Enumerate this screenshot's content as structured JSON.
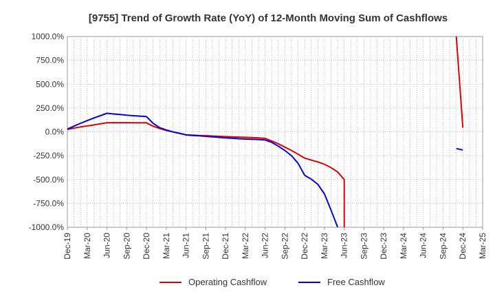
{
  "chart_data": {
    "type": "line",
    "title": "[9755]  Trend of Growth Rate (YoY) of 12-Month Moving Sum of Cashflows",
    "xlabel": "",
    "ylabel": "",
    "ylim": [
      -1000,
      1000
    ],
    "y_ticks": [
      1000,
      750,
      500,
      250,
      0,
      -250,
      -500,
      -750,
      -1000
    ],
    "y_tick_labels": [
      "1000.0%",
      "750.0%",
      "500.0%",
      "250.0%",
      "0.0%",
      "-250.0%",
      "-500.0%",
      "-750.0%",
      "-1000.0%"
    ],
    "x_tick_labels": [
      "Dec-19",
      "Mar-20",
      "Jun-20",
      "Sep-20",
      "Dec-20",
      "Mar-21",
      "Jun-21",
      "Sep-21",
      "Dec-21",
      "Mar-22",
      "Jun-22",
      "Sep-22",
      "Dec-22",
      "Mar-23",
      "Jun-23",
      "Sep-23",
      "Dec-23",
      "Mar-24",
      "Jun-24",
      "Sep-24",
      "Dec-24",
      "Mar-25"
    ],
    "grid": true,
    "legend_position": "bottom",
    "series": [
      {
        "name": "Operating Cashflow",
        "color": "#dd0000",
        "segments": [
          [
            [
              "Dec-19",
              25
            ],
            [
              "Jan-20",
              40
            ],
            [
              "Feb-20",
              52
            ],
            [
              "Mar-20",
              62
            ],
            [
              "Apr-20",
              72
            ],
            [
              "May-20",
              85
            ],
            [
              "Jun-20",
              95
            ],
            [
              "Jul-20",
              97
            ],
            [
              "Aug-20",
              97
            ],
            [
              "Sep-20",
              97
            ],
            [
              "Oct-20",
              96
            ],
            [
              "Nov-20",
              96
            ],
            [
              "Dec-20",
              95
            ],
            [
              "Jan-21",
              60
            ],
            [
              "Feb-21",
              35
            ],
            [
              "Mar-21",
              15
            ],
            [
              "Apr-21",
              0
            ],
            [
              "May-21",
              -15
            ],
            [
              "Jun-21",
              -30
            ],
            [
              "Jul-21",
              -35
            ],
            [
              "Aug-21",
              -38
            ],
            [
              "Sep-21",
              -40
            ],
            [
              "Oct-21",
              -43
            ],
            [
              "Nov-21",
              -46
            ],
            [
              "Dec-21",
              -50
            ],
            [
              "Jan-22",
              -52
            ],
            [
              "Feb-22",
              -55
            ],
            [
              "Mar-22",
              -57
            ],
            [
              "Apr-22",
              -60
            ],
            [
              "May-22",
              -63
            ],
            [
              "Jun-22",
              -68
            ],
            [
              "Jul-22",
              -95
            ],
            [
              "Aug-22",
              -125
            ],
            [
              "Sep-22",
              -160
            ],
            [
              "Oct-22",
              -195
            ],
            [
              "Nov-22",
              -235
            ],
            [
              "Dec-22",
              -275
            ],
            [
              "Jan-23",
              -295
            ],
            [
              "Feb-23",
              -315
            ],
            [
              "Mar-23",
              -340
            ],
            [
              "Apr-23",
              -375
            ],
            [
              "May-23",
              -420
            ],
            [
              "Jun-23",
              -500
            ],
            [
              "Jun-23",
              -1000
            ]
          ],
          [
            [
              "Nov-24",
              1000
            ],
            [
              "Dec-24",
              45
            ]
          ]
        ]
      },
      {
        "name": "Free Cashflow",
        "color": "#0000dd",
        "segments": [
          [
            [
              "Dec-19",
              30
            ],
            [
              "Jan-20",
              60
            ],
            [
              "Feb-20",
              90
            ],
            [
              "Mar-20",
              118
            ],
            [
              "Apr-20",
              145
            ],
            [
              "May-20",
              170
            ],
            [
              "Jun-20",
              195
            ],
            [
              "Jul-20",
              188
            ],
            [
              "Aug-20",
              182
            ],
            [
              "Sep-20",
              175
            ],
            [
              "Oct-20",
              170
            ],
            [
              "Nov-20",
              165
            ],
            [
              "Dec-20",
              160
            ],
            [
              "Jan-21",
              90
            ],
            [
              "Feb-21",
              45
            ],
            [
              "Mar-21",
              20
            ],
            [
              "Apr-21",
              0
            ],
            [
              "May-21",
              -15
            ],
            [
              "Jun-21",
              -32
            ],
            [
              "Jul-21",
              -38
            ],
            [
              "Aug-21",
              -42
            ],
            [
              "Sep-21",
              -47
            ],
            [
              "Oct-21",
              -52
            ],
            [
              "Nov-21",
              -58
            ],
            [
              "Dec-21",
              -63
            ],
            [
              "Jan-22",
              -67
            ],
            [
              "Feb-22",
              -72
            ],
            [
              "Mar-22",
              -75
            ],
            [
              "Apr-22",
              -78
            ],
            [
              "May-22",
              -80
            ],
            [
              "Jun-22",
              -85
            ],
            [
              "Jul-22",
              -110
            ],
            [
              "Aug-22",
              -150
            ],
            [
              "Sep-22",
              -195
            ],
            [
              "Oct-22",
              -250
            ],
            [
              "Nov-22",
              -330
            ],
            [
              "Dec-22",
              -455
            ],
            [
              "Jan-23",
              -495
            ],
            [
              "Feb-23",
              -550
            ],
            [
              "Mar-23",
              -650
            ],
            [
              "Apr-23",
              -820
            ],
            [
              "May-23",
              -1000
            ]
          ],
          [
            [
              "Nov-24",
              -175
            ],
            [
              "Dec-24",
              -190
            ]
          ]
        ]
      }
    ]
  }
}
